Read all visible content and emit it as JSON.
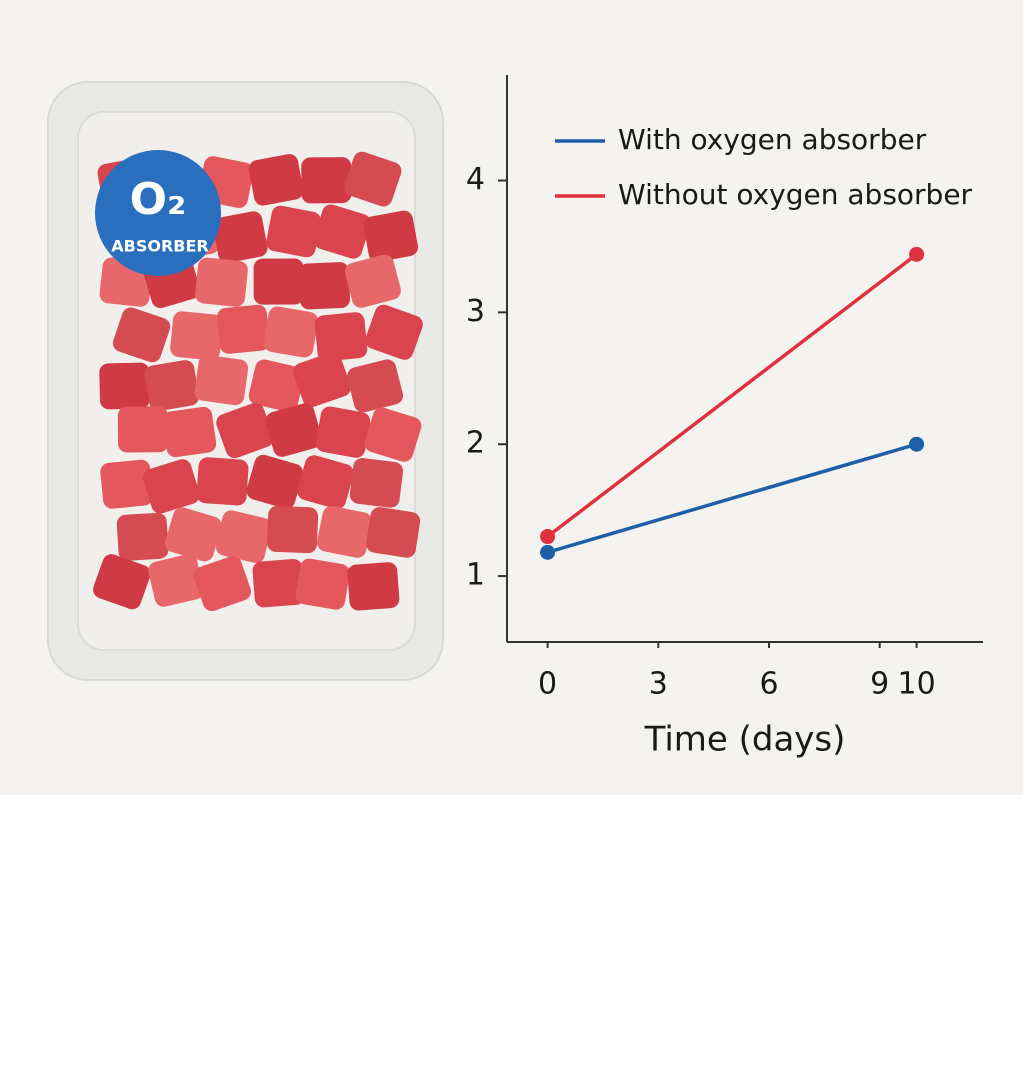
{
  "illustration": {
    "badge_title": "O₂",
    "badge_subtitle": "ABSORBER"
  },
  "chart_data": {
    "type": "line",
    "x_label": "Time (days)",
    "x": [
      0,
      10
    ],
    "series": [
      {
        "name": "With oxygen absorber",
        "color": "#1f5fa8",
        "values": [
          1.18,
          2.0
        ]
      },
      {
        "name": "Without oxygen absorber",
        "color": "#e0303e",
        "values": [
          1.3,
          3.44
        ]
      }
    ],
    "xlim": [
      -1.1,
      11.8
    ],
    "xticks": [
      0,
      3,
      6,
      9,
      10
    ],
    "ylim": [
      0.5,
      4.8
    ],
    "yticks": [
      1,
      2,
      3,
      4
    ],
    "grid": false,
    "legend": "top-right"
  }
}
